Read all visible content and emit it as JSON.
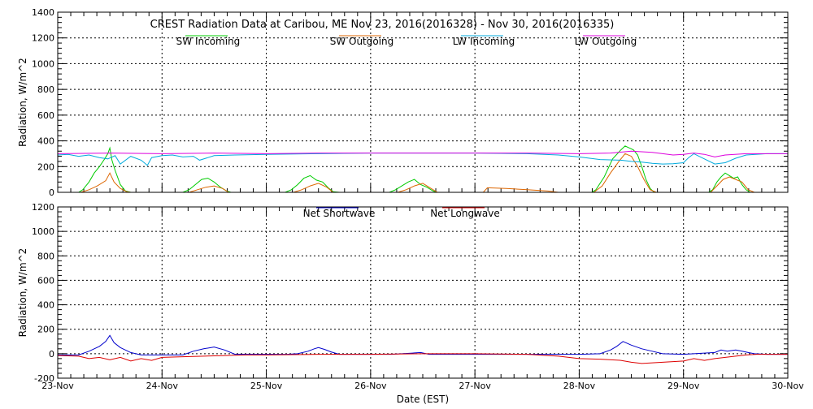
{
  "chart_data": [
    {
      "type": "line",
      "title": "CREST Radiation Data at Caribou, ME   Nov 23, 2016(2016328) - Nov 30, 2016(2016335)",
      "ylabel": "Radiation, W/m^2",
      "xlabel": "",
      "xlim": [
        0,
        7
      ],
      "ylim": [
        0,
        1400
      ],
      "yticks": [
        0,
        200,
        400,
        600,
        800,
        1000,
        1200,
        1400
      ],
      "xticks": [
        "23-Nov",
        "24-Nov",
        "25-Nov",
        "26-Nov",
        "27-Nov",
        "28-Nov",
        "29-Nov",
        "30-Nov"
      ],
      "legend_position": "top",
      "series": [
        {
          "name": "SW Incoming",
          "color": "#00cc00",
          "x": [
            0.0,
            0.2,
            0.24,
            0.3,
            0.35,
            0.4,
            0.45,
            0.48,
            0.5,
            0.52,
            0.55,
            0.6,
            0.65,
            0.7,
            1.2,
            1.26,
            1.32,
            1.38,
            1.44,
            1.5,
            1.56,
            1.62,
            1.66,
            1.72,
            2.18,
            2.24,
            2.3,
            2.36,
            2.42,
            2.48,
            2.54,
            2.6,
            2.64,
            2.7,
            3.18,
            3.24,
            3.3,
            3.36,
            3.42,
            3.48,
            3.54,
            3.6,
            3.64,
            3.7,
            4.1,
            4.5,
            5.0,
            5.12,
            5.16,
            5.24,
            5.32,
            5.4,
            5.44,
            5.48,
            5.52,
            5.56,
            5.6,
            5.64,
            5.68,
            5.72,
            5.76,
            5.8,
            6.0,
            6.24,
            6.28,
            6.32,
            6.36,
            6.4,
            6.44,
            6.48,
            6.52,
            6.56,
            6.6,
            6.64,
            6.68,
            7.0
          ],
          "y": [
            0,
            0,
            20,
            80,
            150,
            200,
            260,
            300,
            345,
            250,
            170,
            60,
            10,
            0,
            0,
            20,
            60,
            100,
            110,
            80,
            40,
            10,
            0,
            0,
            0,
            20,
            60,
            110,
            130,
            95,
            80,
            30,
            5,
            0,
            0,
            20,
            50,
            80,
            100,
            60,
            40,
            10,
            0,
            0,
            0,
            0,
            0,
            0,
            20,
            120,
            260,
            330,
            360,
            345,
            330,
            290,
            200,
            100,
            30,
            0,
            0,
            0,
            0,
            0,
            20,
            80,
            120,
            150,
            130,
            110,
            120,
            60,
            20,
            0,
            0,
            0
          ]
        },
        {
          "name": "SW Outgoing",
          "color": "#dd6600",
          "x": [
            0.0,
            0.22,
            0.3,
            0.38,
            0.46,
            0.5,
            0.54,
            0.6,
            0.66,
            0.7,
            1.26,
            1.34,
            1.42,
            1.5,
            1.58,
            1.64,
            2.26,
            2.34,
            2.42,
            2.5,
            2.58,
            2.64,
            3.26,
            3.34,
            3.42,
            3.5,
            3.56,
            3.64,
            4.08,
            4.12,
            4.3,
            4.5,
            4.7,
            4.8,
            5.14,
            5.22,
            5.3,
            5.38,
            5.44,
            5.5,
            5.56,
            5.62,
            5.68,
            5.74,
            6.26,
            6.32,
            6.38,
            6.44,
            6.5,
            6.56,
            6.62,
            6.68,
            7.0
          ],
          "y": [
            0,
            0,
            20,
            50,
            90,
            150,
            80,
            30,
            5,
            0,
            0,
            20,
            40,
            50,
            30,
            0,
            0,
            20,
            50,
            70,
            40,
            0,
            0,
            20,
            50,
            70,
            40,
            0,
            0,
            35,
            30,
            20,
            10,
            0,
            0,
            50,
            150,
            240,
            300,
            280,
            200,
            100,
            20,
            0,
            0,
            50,
            100,
            120,
            100,
            80,
            20,
            0,
            0
          ]
        },
        {
          "name": "LW Incoming",
          "color": "#00aadd",
          "x": [
            0.0,
            0.1,
            0.2,
            0.3,
            0.4,
            0.48,
            0.55,
            0.6,
            0.7,
            0.8,
            0.86,
            0.9,
            1.0,
            1.1,
            1.2,
            1.3,
            1.36,
            1.5,
            1.7,
            2.0,
            2.5,
            3.0,
            3.5,
            4.0,
            4.5,
            4.8,
            5.0,
            5.2,
            5.4,
            5.5,
            5.6,
            5.7,
            5.8,
            5.9,
            6.0,
            6.05,
            6.1,
            6.2,
            6.3,
            6.4,
            6.5,
            6.6,
            6.8,
            7.0
          ],
          "y": [
            290,
            295,
            280,
            290,
            270,
            260,
            285,
            220,
            280,
            250,
            210,
            270,
            285,
            290,
            275,
            280,
            250,
            285,
            290,
            295,
            300,
            305,
            305,
            305,
            300,
            290,
            275,
            255,
            250,
            240,
            235,
            225,
            220,
            222,
            230,
            270,
            300,
            260,
            220,
            230,
            265,
            290,
            300,
            300
          ]
        },
        {
          "name": "LW Outgoing",
          "color": "#dd00dd",
          "x": [
            0.0,
            0.5,
            1.0,
            1.5,
            2.0,
            2.5,
            3.0,
            3.5,
            4.0,
            4.5,
            5.0,
            5.3,
            5.5,
            5.7,
            5.9,
            6.0,
            6.1,
            6.2,
            6.3,
            6.4,
            6.6,
            7.0
          ],
          "y": [
            300,
            305,
            300,
            305,
            300,
            305,
            305,
            305,
            305,
            305,
            300,
            305,
            320,
            310,
            290,
            295,
            305,
            295,
            275,
            290,
            300,
            300
          ]
        }
      ]
    },
    {
      "type": "line",
      "title": "",
      "ylabel": "Radiation, W/m^2",
      "xlabel": "Date (EST)",
      "xlim": [
        0,
        7
      ],
      "ylim": [
        -200,
        1200
      ],
      "yticks": [
        -200,
        0,
        200,
        400,
        600,
        800,
        1000,
        1200
      ],
      "xticks": [
        "23-Nov",
        "24-Nov",
        "25-Nov",
        "26-Nov",
        "27-Nov",
        "28-Nov",
        "29-Nov",
        "30-Nov"
      ],
      "legend_position": "top",
      "series": [
        {
          "name": "Net Shortwave",
          "color": "#0000cc",
          "x": [
            0.0,
            0.2,
            0.3,
            0.4,
            0.46,
            0.5,
            0.54,
            0.6,
            0.7,
            0.8,
            1.2,
            1.3,
            1.4,
            1.5,
            1.6,
            1.7,
            2.2,
            2.3,
            2.4,
            2.46,
            2.5,
            2.56,
            2.62,
            2.7,
            3.2,
            3.3,
            3.4,
            3.48,
            3.56,
            3.7,
            5.0,
            5.2,
            5.3,
            5.36,
            5.42,
            5.5,
            5.6,
            5.7,
            5.8,
            6.0,
            6.3,
            6.36,
            6.42,
            6.5,
            6.56,
            6.62,
            6.68,
            6.8,
            7.0
          ],
          "y": [
            -10,
            -10,
            20,
            60,
            100,
            150,
            90,
            50,
            10,
            -10,
            -10,
            20,
            40,
            55,
            30,
            -5,
            -5,
            0,
            20,
            40,
            50,
            35,
            15,
            -5,
            -5,
            0,
            5,
            10,
            -5,
            -5,
            -5,
            0,
            30,
            60,
            100,
            70,
            40,
            20,
            0,
            -5,
            10,
            30,
            20,
            30,
            20,
            10,
            0,
            -5,
            -5
          ]
        },
        {
          "name": "Net Longwave",
          "color": "#dd0000",
          "x": [
            0.0,
            0.2,
            0.3,
            0.4,
            0.5,
            0.6,
            0.7,
            0.8,
            0.9,
            1.0,
            1.2,
            1.4,
            1.6,
            1.8,
            2.0,
            2.5,
            3.0,
            3.5,
            4.0,
            4.5,
            4.8,
            5.0,
            5.2,
            5.4,
            5.5,
            5.6,
            5.8,
            6.0,
            6.1,
            6.2,
            6.3,
            6.4,
            6.5,
            6.6,
            6.7,
            7.0
          ],
          "y": [
            -15,
            -20,
            -40,
            -30,
            -50,
            -30,
            -60,
            -40,
            -55,
            -30,
            -25,
            -20,
            -15,
            -10,
            -10,
            -5,
            -5,
            0,
            0,
            -5,
            -20,
            -40,
            -45,
            -55,
            -70,
            -80,
            -70,
            -60,
            -40,
            -55,
            -40,
            -30,
            -20,
            -10,
            -5,
            -5
          ]
        }
      ]
    }
  ]
}
